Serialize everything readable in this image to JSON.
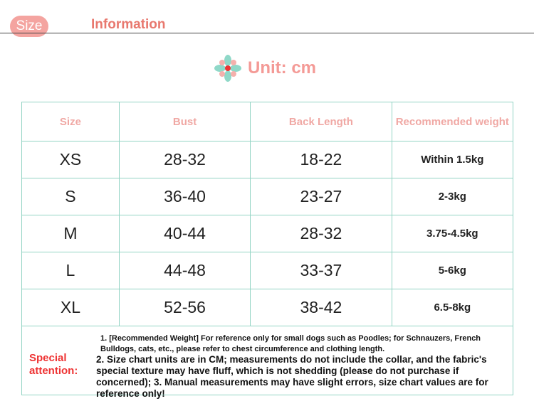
{
  "header": {
    "tag": "Size",
    "title": "Information"
  },
  "unit": "Unit: cm",
  "table": {
    "columns": [
      "Size",
      "Bust",
      "Back Length",
      "Recommended weight"
    ],
    "rows": [
      [
        "XS",
        "28-32",
        "18-22",
        "Within 1.5kg"
      ],
      [
        "S",
        "36-40",
        "23-27",
        "2-3kg"
      ],
      [
        "M",
        "40-44",
        "28-32",
        "3.75-4.5kg"
      ],
      [
        "L",
        "44-48",
        "33-37",
        "5-6kg"
      ],
      [
        "XL",
        "52-56",
        "38-42",
        "6.5-8kg"
      ]
    ]
  },
  "notes": {
    "label": "Special attention:",
    "lines": [
      "1. [Recommended Weight] For reference only for small dogs such as Poodles; for Schnauzers, French Bulldogs, cats, etc., please refer to chest circumference and clothing length.",
      "2. Size chart units are in CM; measurements do not include the collar, and the fabric's special texture may have fluff, which is not shedding (please do not purchase if concerned); 3. Manual measurements may have slight errors, size chart values are for reference only!"
    ]
  }
}
